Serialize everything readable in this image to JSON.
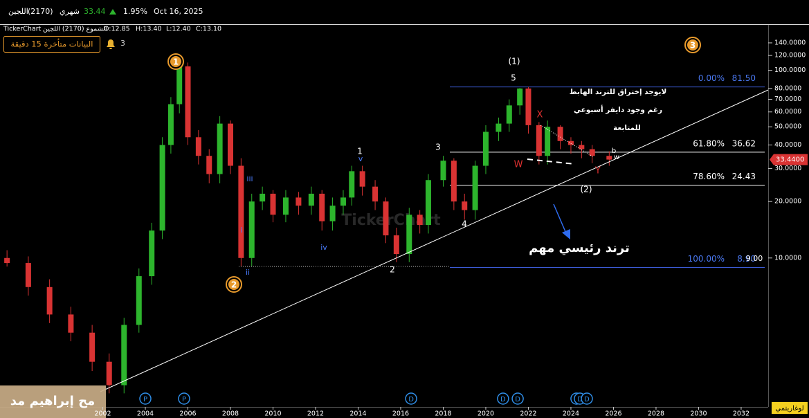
{
  "top_bar": {
    "name": "اللجين",
    "code": "(2170)",
    "period": "شهري",
    "price": "33.44",
    "change": "1.95%",
    "date": "Oct 16, 2025"
  },
  "info_bar": {
    "brand": "TickerChart",
    "series": "الشموع (2170) اللجين",
    "open": "O:12.85",
    "high": "H:13.40",
    "low": "L:12.40",
    "close": "C:13.10"
  },
  "notice": {
    "text": "البيانات متأخرة 15 دقيقة",
    "count": "3"
  },
  "watermark": "TickerChart",
  "author": "مح إبراهيم مد",
  "scale_button": "لوغاريتمي",
  "chart_data": {
    "type": "candlestick",
    "log_scale": true,
    "x": [
      1997.5,
      1998.5,
      1999.5,
      2000.5,
      2001.5,
      2002.3,
      2003,
      2003.7,
      2004.3,
      2004.8,
      2005.2,
      2005.6,
      2006,
      2006.5,
      2007,
      2007.5,
      2008,
      2008.5,
      2009,
      2009.5,
      2010,
      2010.6,
      2011.2,
      2011.8,
      2012.3,
      2012.8,
      2013.3,
      2013.7,
      2014.2,
      2014.8,
      2015.3,
      2015.8,
      2016.4,
      2016.9,
      2017.3,
      2018,
      2018.5,
      2019,
      2019.5,
      2020,
      2020.6,
      2021.1,
      2021.6,
      2022,
      2022.5,
      2022.9,
      2023.5,
      2024,
      2024.5,
      2025,
      2025.8
    ],
    "open": [
      10,
      9.4,
      7,
      5,
      4,
      2.8,
      2.1,
      4.4,
      8,
      14,
      40,
      66,
      105,
      44,
      35,
      28,
      52,
      31,
      10,
      20,
      22,
      17,
      21,
      19,
      22,
      15.7,
      19,
      21,
      29,
      24,
      20,
      13.2,
      10.5,
      17,
      15,
      26,
      33,
      20,
      18,
      31,
      47,
      52,
      65,
      80,
      51,
      35,
      50,
      42,
      40,
      38,
      35
    ],
    "high": [
      11,
      10.2,
      7.7,
      5.5,
      4.4,
      3.1,
      4.8,
      8.8,
      15.4,
      44,
      72,
      118,
      110,
      48,
      38,
      57,
      54,
      34,
      22,
      24,
      23,
      23,
      22.5,
      24,
      23,
      21,
      23,
      31,
      31,
      26,
      21,
      14.5,
      18.5,
      18,
      28,
      35,
      34,
      22,
      33,
      51,
      56,
      70,
      80.5,
      81.5,
      53,
      54,
      51,
      44,
      42,
      40,
      37
    ],
    "low": [
      9,
      6.3,
      4.5,
      3.6,
      2.5,
      1.9,
      1.9,
      4,
      7.2,
      12.6,
      36,
      59,
      40,
      31.5,
      25,
      25,
      28,
      9,
      9,
      18,
      15.5,
      15.5,
      17,
      17,
      14,
      14,
      17,
      19,
      21.5,
      18,
      12,
      9.5,
      9.5,
      13.5,
      13.5,
      24,
      18,
      16,
      16,
      28,
      42,
      47,
      58,
      46,
      31.5,
      31.5,
      38,
      36,
      34,
      32,
      31
    ],
    "close": [
      9.4,
      7,
      5,
      4,
      2.8,
      2.1,
      4.4,
      8,
      14,
      40,
      66,
      105,
      44,
      35,
      28,
      52,
      31,
      10,
      20,
      22,
      17,
      21,
      19,
      22,
      15.7,
      19,
      21,
      29,
      24,
      20,
      13.2,
      10.5,
      17,
      15,
      26,
      33,
      20,
      18,
      31,
      47,
      52,
      65,
      80,
      51,
      35,
      50,
      42,
      40,
      38,
      35,
      33.44
    ],
    "up_color": "#2db52d",
    "down_color": "#d93333",
    "xlim": [
      1997.17,
      2033.27
    ],
    "ylim": [
      1.65,
      176
    ],
    "xticks": [
      2002,
      2004,
      2006,
      2008,
      2010,
      2012,
      2014,
      2016,
      2018,
      2020,
      2022,
      2024,
      2026,
      2028,
      2030,
      2032
    ],
    "yticks": [
      {
        "value": 140,
        "label": "140.0000"
      },
      {
        "value": 120,
        "label": "120.0000"
      },
      {
        "value": 100,
        "label": "100.0000"
      },
      {
        "value": 80,
        "label": "80.0000"
      },
      {
        "value": 70,
        "label": "70.0000"
      },
      {
        "value": 60,
        "label": "60.0000"
      },
      {
        "value": 50,
        "label": "50.0000"
      },
      {
        "value": 40,
        "label": "40.0000"
      },
      {
        "value": 30,
        "label": "30.0000"
      },
      {
        "value": 20,
        "label": "20.0000"
      },
      {
        "value": 10,
        "label": "10.0000"
      }
    ],
    "last_price": {
      "value": 33.44,
      "label": "33.4400"
    },
    "fib_levels": [
      {
        "ratio": "0.00%",
        "price": {
          "value": 81.5,
          "label": "81.50"
        },
        "color": "#3c5bd6"
      },
      {
        "ratio": "61.80%",
        "price": 36.62,
        "color": "#ffffff"
      },
      {
        "ratio": "78.60%",
        "price": 24.43,
        "color": "#ffffff"
      },
      {
        "ratio": "100.00%",
        "price": {
          "value": 8.9,
          "label": "8.90"
        },
        "color": "#3c5bd6"
      }
    ],
    "circle_labels": [
      "1",
      "2",
      "3"
    ],
    "annotations": [
      "(1)",
      "5",
      "1",
      "3",
      "4",
      "2",
      "(2)",
      "i",
      "ii",
      "iii",
      "iv",
      "v",
      "X",
      "W",
      "Y",
      "b",
      "w",
      "لايوجد إختراق للترند الهابط",
      "رغم وجود دايفر أسبوعي",
      "للمتابعة",
      "ترند رئيسي مهم",
      "9.00"
    ],
    "events": [
      {
        "label": "P",
        "x": 2004
      },
      {
        "label": "P",
        "x": 2005.82
      },
      {
        "label": "D",
        "x": 2016.49
      },
      {
        "label": "D",
        "x": 2020.81
      },
      {
        "label": "D",
        "x": 2021.5
      },
      {
        "label": "D",
        "x": 2024.26
      },
      {
        "label": "D",
        "x": 2024.42
      },
      {
        "label": "D",
        "x": 2024.75
      }
    ]
  }
}
